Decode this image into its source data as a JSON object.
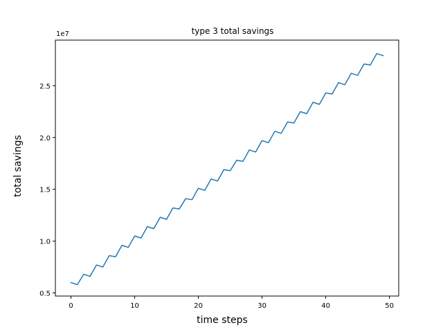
{
  "chart_data": {
    "type": "line",
    "title": "type 3 total savings",
    "xlabel": "time steps",
    "ylabel": "total savings",
    "y_offset_label": "1e7",
    "y_scale": 10000000,
    "xlim": [
      -2.45,
      51.45
    ],
    "ylim": [
      0.47,
      2.94
    ],
    "x_ticks": [
      0,
      10,
      20,
      30,
      40,
      50
    ],
    "x_tick_labels": [
      "0",
      "10",
      "20",
      "30",
      "40",
      "50"
    ],
    "y_ticks": [
      0.5,
      1.0,
      1.5,
      2.0,
      2.5
    ],
    "y_tick_labels": [
      "0.5",
      "1.0",
      "1.5",
      "2.0",
      "2.5"
    ],
    "grid": false,
    "line_color": "#1f77b4",
    "series": [
      {
        "x": [
          0,
          1,
          2,
          3,
          4,
          5,
          6,
          7,
          8,
          9,
          10,
          11,
          12,
          13,
          14,
          15,
          16,
          17,
          18,
          19,
          20,
          21,
          22,
          23,
          24,
          25,
          26,
          27,
          28,
          29,
          30,
          31,
          32,
          33,
          34,
          35,
          36,
          37,
          38,
          39,
          40,
          41,
          42,
          43,
          44,
          45,
          46,
          47,
          48,
          49
        ],
        "values": [
          0.6,
          0.58,
          0.68,
          0.66,
          0.77,
          0.75,
          0.86,
          0.85,
          0.96,
          0.94,
          1.05,
          1.03,
          1.14,
          1.12,
          1.23,
          1.21,
          1.32,
          1.31,
          1.41,
          1.4,
          1.51,
          1.49,
          1.6,
          1.58,
          1.69,
          1.68,
          1.78,
          1.77,
          1.88,
          1.86,
          1.97,
          1.95,
          2.06,
          2.04,
          2.15,
          2.14,
          2.25,
          2.23,
          2.34,
          2.32,
          2.43,
          2.42,
          2.53,
          2.51,
          2.62,
          2.6,
          2.71,
          2.7,
          2.81,
          2.79
        ]
      }
    ]
  }
}
